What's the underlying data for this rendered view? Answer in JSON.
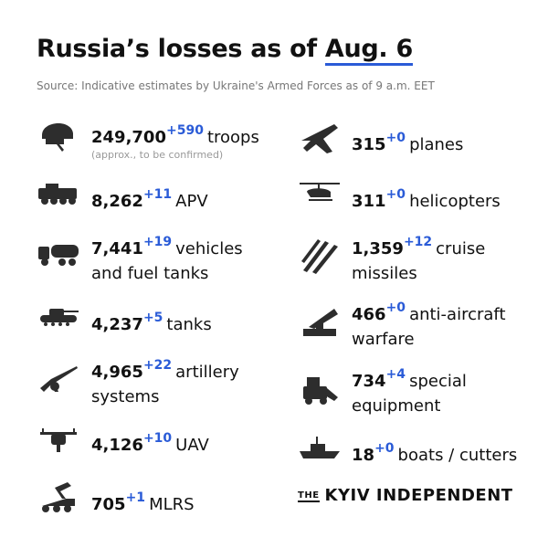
{
  "header": {
    "title": "Russia’s losses as of",
    "title_date": "Aug. 6",
    "source": "Source: Indicative estimates by Ukraine's Armed Forces as of 9 a.m. EET"
  },
  "items": [
    {
      "value": "249,700",
      "delta": "+590",
      "label": [
        "troops"
      ],
      "note": "(approx., to be confirmed)"
    },
    {
      "value": "8,262",
      "delta": "+11",
      "label": [
        "APV"
      ]
    },
    {
      "value": "7,441",
      "delta": "+19",
      "label": [
        "vehicles",
        "and fuel tanks"
      ]
    },
    {
      "value": "4,237",
      "delta": "+5",
      "label": [
        "tanks"
      ]
    },
    {
      "value": "4,965",
      "delta": "+22",
      "label": [
        "artillery",
        "systems"
      ]
    },
    {
      "value": "4,126",
      "delta": "+10",
      "label": [
        "UAV"
      ]
    },
    {
      "value": "705",
      "delta": "+1",
      "label": [
        "MLRS"
      ]
    },
    {
      "value": "315",
      "delta": "+0",
      "label": [
        "planes"
      ]
    },
    {
      "value": "311",
      "delta": "+0",
      "label": [
        "helicopters"
      ]
    },
    {
      "value": "1,359",
      "delta": "+12",
      "label": [
        "cruise",
        "missiles"
      ]
    },
    {
      "value": "466",
      "delta": "+0",
      "label": [
        "anti-aircraft",
        "warfare"
      ]
    },
    {
      "value": "734",
      "delta": "+4",
      "label": [
        "special",
        "equipment"
      ]
    },
    {
      "value": "18",
      "delta": "+0",
      "label": [
        "boats / cutters"
      ]
    }
  ],
  "logo": {
    "small": "THE",
    "main": "KYIV INDEPENDENT"
  }
}
